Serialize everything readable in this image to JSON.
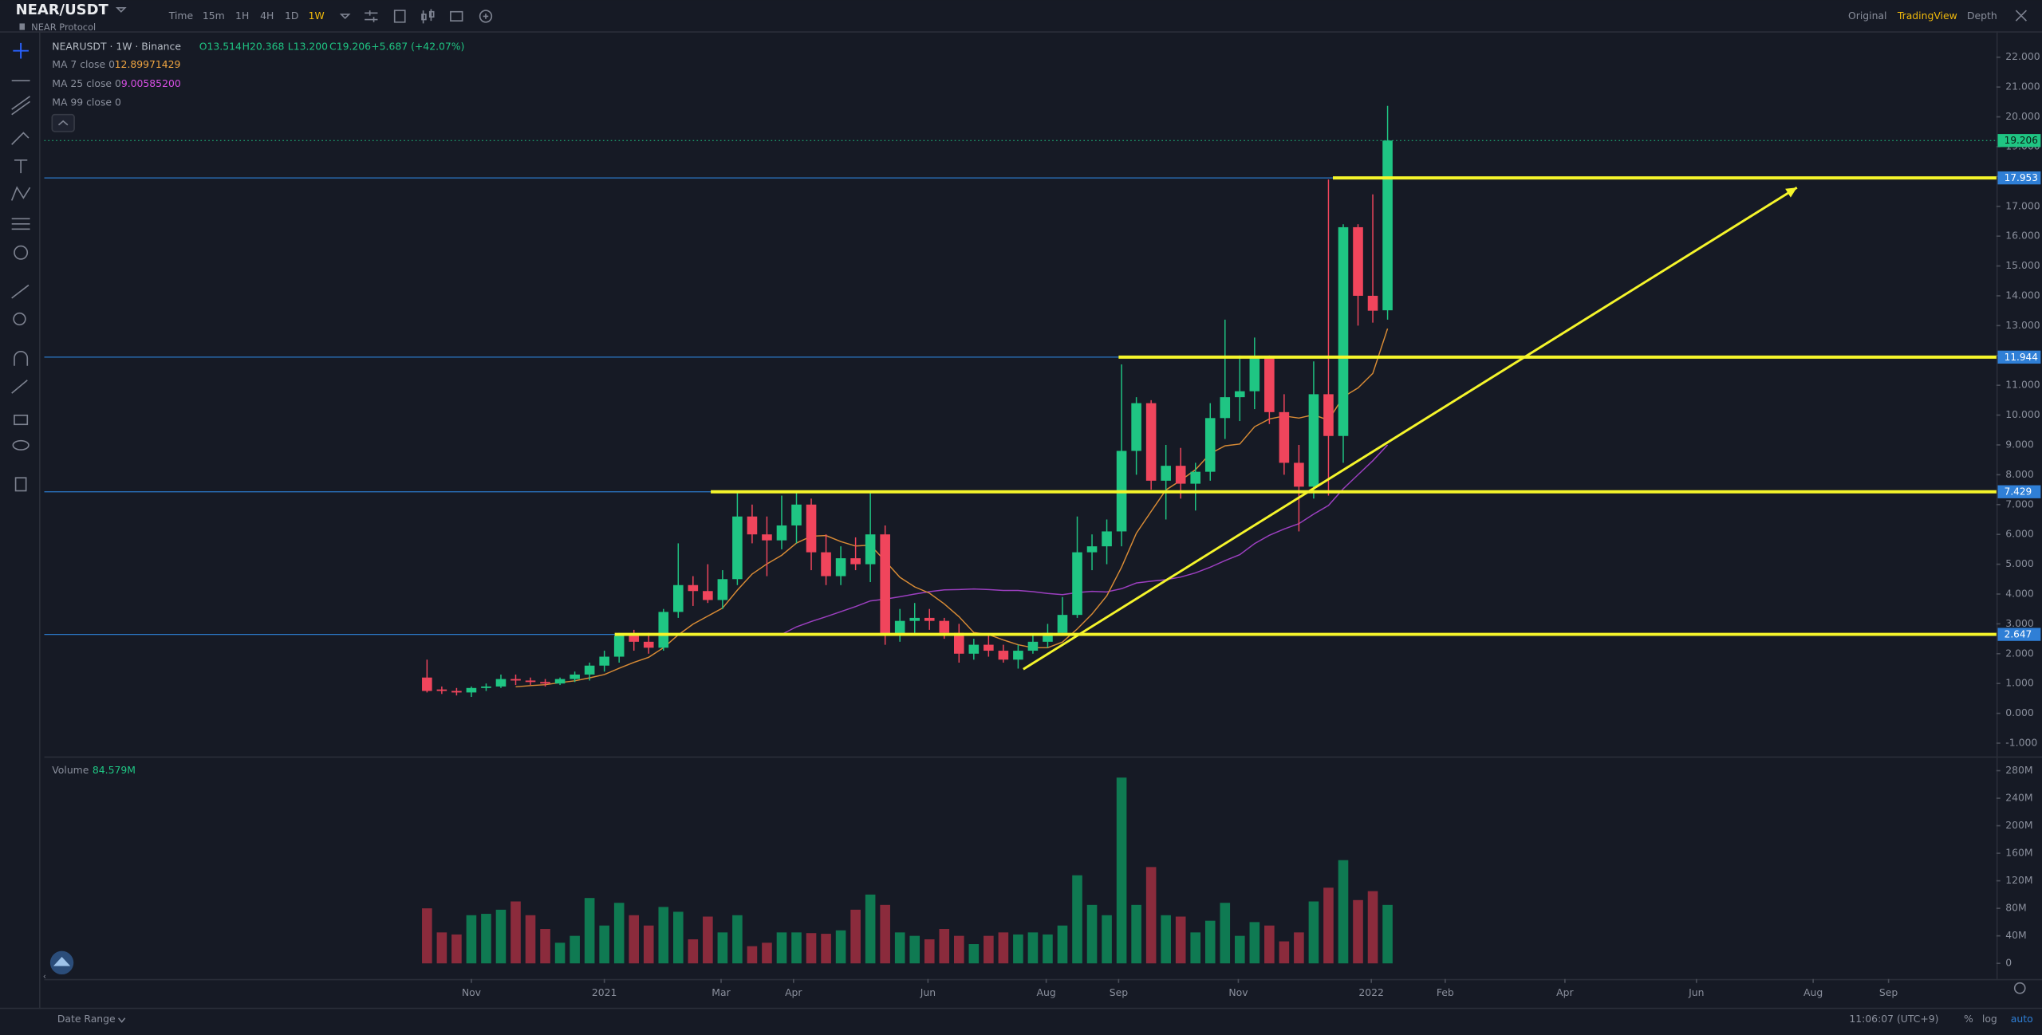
{
  "header": {
    "symbol": "NEAR/USDT",
    "name": "NEAR Protocol",
    "intervals": [
      "Time",
      "15m",
      "1H",
      "4H",
      "1D",
      "1W"
    ],
    "active_interval": 5,
    "views": [
      "Original",
      "TradingView",
      "Depth"
    ],
    "active_view": 1
  },
  "legend": {
    "title": "NEARUSDT · 1W · Binance",
    "ohlc": [
      "O13.514",
      "H20.368",
      "L13.200",
      "C19.206"
    ],
    "change": "+5.687 (+42.07%)",
    "ma": [
      {
        "label": "MA 7 close 0",
        "value": "12.89971429",
        "color": "#f0a541"
      },
      {
        "label": "MA 25 close 0",
        "value": "9.00585200",
        "color": "#d64fe3"
      },
      {
        "label": "MA 99 close 0"
      }
    ]
  },
  "volume_legend": {
    "label": "Volume",
    "value": "84.579M"
  },
  "footer": {
    "date_range": "Date Range",
    "clock": "11:06:07 (UTC+9)",
    "options": [
      "%",
      "log",
      "auto"
    ]
  },
  "chart_data": {
    "type": "candlestick",
    "xlim": [
      -25.9,
      106.2
    ],
    "xticks": [
      {
        "value": 3.0,
        "label": "Nov"
      },
      {
        "value": 12.0,
        "label": "2021"
      },
      {
        "value": 19.9,
        "label": "Mar"
      },
      {
        "value": 24.8,
        "label": "Apr"
      },
      {
        "value": 33.9,
        "label": "Jun"
      },
      {
        "value": 41.9,
        "label": "Aug"
      },
      {
        "value": 46.8,
        "label": "Sep"
      },
      {
        "value": 54.9,
        "label": "Nov"
      },
      {
        "value": 63.9,
        "label": "2022"
      },
      {
        "value": 68.9,
        "label": "Feb"
      },
      {
        "value": 77.0,
        "label": "Apr"
      },
      {
        "value": 85.9,
        "label": "Jun"
      },
      {
        "value": 93.8,
        "label": "Aug"
      },
      {
        "value": 98.9,
        "label": "Sep"
      }
    ],
    "ylim": [
      -1.4,
      22.87
    ],
    "yticks": [
      {
        "value": -1,
        "label": "-1.000"
      },
      {
        "value": 0,
        "label": "0.000"
      },
      {
        "value": 1,
        "label": "1.000"
      },
      {
        "value": 2,
        "label": "2.000"
      },
      {
        "value": 3,
        "label": "3.000"
      },
      {
        "value": 4,
        "label": "4.000"
      },
      {
        "value": 5,
        "label": "5.000"
      },
      {
        "value": 6,
        "label": "6.000"
      },
      {
        "value": 7,
        "label": "7.000"
      },
      {
        "value": 8,
        "label": "8.000"
      },
      {
        "value": 9,
        "label": "9.000"
      },
      {
        "value": 10,
        "label": "10.000"
      },
      {
        "value": 11,
        "label": "11.000"
      },
      {
        "value": 12,
        "label": "12.000"
      },
      {
        "value": 13,
        "label": "13.000"
      },
      {
        "value": 14,
        "label": "14.000"
      },
      {
        "value": 15,
        "label": "15.000"
      },
      {
        "value": 16,
        "label": "16.000"
      },
      {
        "value": 17,
        "label": "17.000"
      },
      {
        "value": 18,
        "label": "18.000"
      },
      {
        "value": 19,
        "label": "19.000"
      },
      {
        "value": 20,
        "label": "20.000"
      },
      {
        "value": 21,
        "label": "21.000"
      },
      {
        "value": 22,
        "label": "22.000"
      }
    ],
    "up_color": "#1fc583",
    "down_color": "#f0455c",
    "open": [
      1.2,
      0.8,
      0.75,
      0.7,
      0.85,
      0.9,
      1.15,
      1.1,
      1.05,
      1.0,
      1.15,
      1.3,
      1.6,
      1.9,
      2.6,
      2.4,
      2.2,
      3.4,
      4.3,
      4.1,
      3.8,
      4.5,
      6.6,
      6.0,
      5.8,
      6.3,
      7.0,
      5.4,
      4.6,
      5.2,
      5.0,
      6.0,
      2.6,
      3.1,
      3.2,
      3.1,
      2.7,
      2.0,
      2.3,
      2.1,
      1.8,
      2.1,
      2.4,
      2.7,
      3.3,
      5.4,
      5.6,
      6.1,
      8.8,
      10.4,
      7.8,
      8.3,
      7.7,
      8.1,
      9.9,
      10.6,
      10.8,
      11.9,
      10.1,
      8.4,
      7.6,
      10.7,
      9.3,
      16.3,
      14.0,
      13.514
    ],
    "high": [
      1.8,
      0.9,
      0.85,
      0.9,
      1.0,
      1.3,
      1.3,
      1.2,
      1.15,
      1.2,
      1.4,
      1.7,
      2.1,
      2.7,
      2.8,
      2.7,
      3.5,
      5.7,
      4.6,
      5.0,
      4.8,
      7.4,
      7.0,
      6.6,
      7.3,
      7.4,
      7.2,
      6.0,
      5.6,
      5.9,
      7.4,
      6.3,
      3.5,
      3.7,
      3.5,
      3.2,
      3.0,
      2.5,
      2.6,
      2.3,
      2.3,
      2.6,
      3.0,
      3.9,
      6.6,
      6.0,
      6.5,
      11.7,
      10.6,
      10.5,
      9.0,
      8.9,
      8.4,
      10.4,
      13.2,
      12.0,
      12.6,
      12.0,
      10.7,
      9.0,
      11.8,
      17.9,
      16.4,
      16.4,
      17.4,
      20.368
    ],
    "low": [
      0.7,
      0.65,
      0.6,
      0.55,
      0.75,
      0.85,
      0.95,
      0.95,
      0.9,
      0.95,
      1.05,
      1.1,
      1.4,
      1.7,
      2.1,
      2.0,
      2.1,
      3.2,
      3.6,
      3.7,
      3.5,
      4.3,
      5.7,
      4.6,
      5.5,
      5.7,
      4.8,
      4.3,
      4.3,
      4.8,
      4.4,
      2.3,
      2.4,
      2.7,
      2.8,
      2.5,
      1.7,
      1.8,
      1.9,
      1.7,
      1.5,
      2.0,
      2.2,
      2.6,
      3.2,
      4.8,
      5.0,
      5.6,
      8.0,
      7.5,
      6.5,
      7.2,
      6.8,
      7.8,
      9.2,
      9.8,
      10.2,
      9.7,
      8.0,
      6.1,
      7.2,
      7.3,
      8.4,
      13.0,
      13.1,
      13.2
    ],
    "close": [
      0.75,
      0.75,
      0.7,
      0.85,
      0.9,
      1.15,
      1.1,
      1.05,
      1.0,
      1.15,
      1.3,
      1.6,
      1.9,
      2.6,
      2.4,
      2.2,
      3.4,
      4.3,
      4.1,
      3.8,
      4.5,
      6.6,
      6.0,
      5.8,
      6.3,
      7.0,
      5.4,
      4.6,
      5.2,
      5.0,
      6.0,
      2.6,
      3.1,
      3.2,
      3.1,
      2.7,
      2.0,
      2.3,
      2.1,
      1.8,
      2.1,
      2.4,
      2.7,
      3.3,
      5.4,
      5.6,
      6.1,
      8.8,
      10.4,
      7.8,
      8.3,
      7.7,
      8.1,
      9.9,
      10.6,
      10.8,
      11.9,
      10.1,
      8.4,
      7.6,
      10.7,
      9.3,
      16.3,
      14.0,
      13.5,
      19.206
    ],
    "ma7": [
      null,
      null,
      null,
      null,
      null,
      null,
      0.89,
      0.93,
      0.96,
      1.03,
      1.09,
      1.19,
      1.3,
      1.51,
      1.71,
      1.88,
      2.2,
      2.63,
      2.99,
      3.26,
      3.53,
      4.13,
      4.67,
      5.01,
      5.3,
      5.71,
      5.94,
      5.96,
      5.76,
      5.61,
      5.64,
      5.11,
      4.56,
      4.24,
      4.03,
      3.67,
      3.24,
      2.71,
      2.64,
      2.46,
      2.3,
      2.2,
      2.2,
      2.39,
      2.83,
      3.33,
      3.94,
      4.9,
      6.04,
      6.77,
      7.49,
      7.81,
      8.17,
      8.71,
      8.97,
      9.03,
      9.61,
      9.87,
      9.97,
      9.9,
      10.01,
      9.83,
      10.61,
      10.91,
      11.4,
      12.9
    ],
    "ma25": [
      null,
      null,
      null,
      null,
      null,
      null,
      null,
      null,
      null,
      null,
      null,
      null,
      null,
      null,
      null,
      null,
      null,
      null,
      null,
      null,
      null,
      null,
      null,
      null,
      2.65,
      2.9,
      3.08,
      3.24,
      3.41,
      3.58,
      3.77,
      3.83,
      3.91,
      4.0,
      4.08,
      4.14,
      4.15,
      4.17,
      4.15,
      4.12,
      4.12,
      4.08,
      4.02,
      3.98,
      4.05,
      4.09,
      4.07,
      4.18,
      4.37,
      4.43,
      4.48,
      4.57,
      4.71,
      4.9,
      5.12,
      5.32,
      5.69,
      5.97,
      6.18,
      6.36,
      6.68,
      6.97,
      7.53,
      8.0,
      8.47,
      9.0
    ],
    "ma7_color": "#d88b35",
    "ma25_color": "#9c3fc0",
    "level_line_color": "#2b78c8",
    "level_color": "#f5f52b",
    "levels": [
      {
        "value": 17.953,
        "label": "17.953",
        "from": 61.3
      },
      {
        "value": 11.944,
        "label": "11.944",
        "from": 46.8
      },
      {
        "value": 7.429,
        "label": "7.429",
        "from": 19.2
      },
      {
        "value": 2.647,
        "label": "2.647",
        "from": 12.7
      }
    ],
    "last_price": {
      "value": 19.206,
      "label": "19.206"
    },
    "trendline": {
      "x": [
        40.35,
        92.7
      ],
      "y": [
        1.48,
        17.63
      ]
    },
    "volume": {
      "values": [
        80,
        45,
        42,
        70,
        72,
        78,
        90,
        70,
        50,
        30,
        40,
        95,
        55,
        88,
        70,
        55,
        82,
        75,
        35,
        68,
        45,
        70,
        25,
        30,
        45,
        45,
        44,
        43,
        48,
        78,
        100,
        85,
        45,
        40,
        35,
        50,
        40,
        28,
        40,
        45,
        42,
        45,
        42,
        55,
        128,
        85,
        70,
        270,
        85,
        140,
        70,
        68,
        45,
        62,
        88,
        40,
        60,
        55,
        32,
        45,
        90,
        110,
        150,
        92,
        105,
        85
      ],
      "ylim": [
        -22.7,
        297
      ],
      "yticks": [
        0,
        {
          "value": 40,
          "label": "40M"
        },
        {
          "value": 80,
          "label": "80M"
        },
        {
          "value": 120,
          "label": "120M"
        },
        {
          "value": 160,
          "label": "160M"
        },
        {
          "value": 200,
          "label": "200M"
        },
        {
          "value": 240,
          "label": "240M"
        },
        {
          "value": 280,
          "label": "280M"
        }
      ],
      "up_color": "#0f7a52",
      "down_color": "#8b2b3c"
    }
  }
}
